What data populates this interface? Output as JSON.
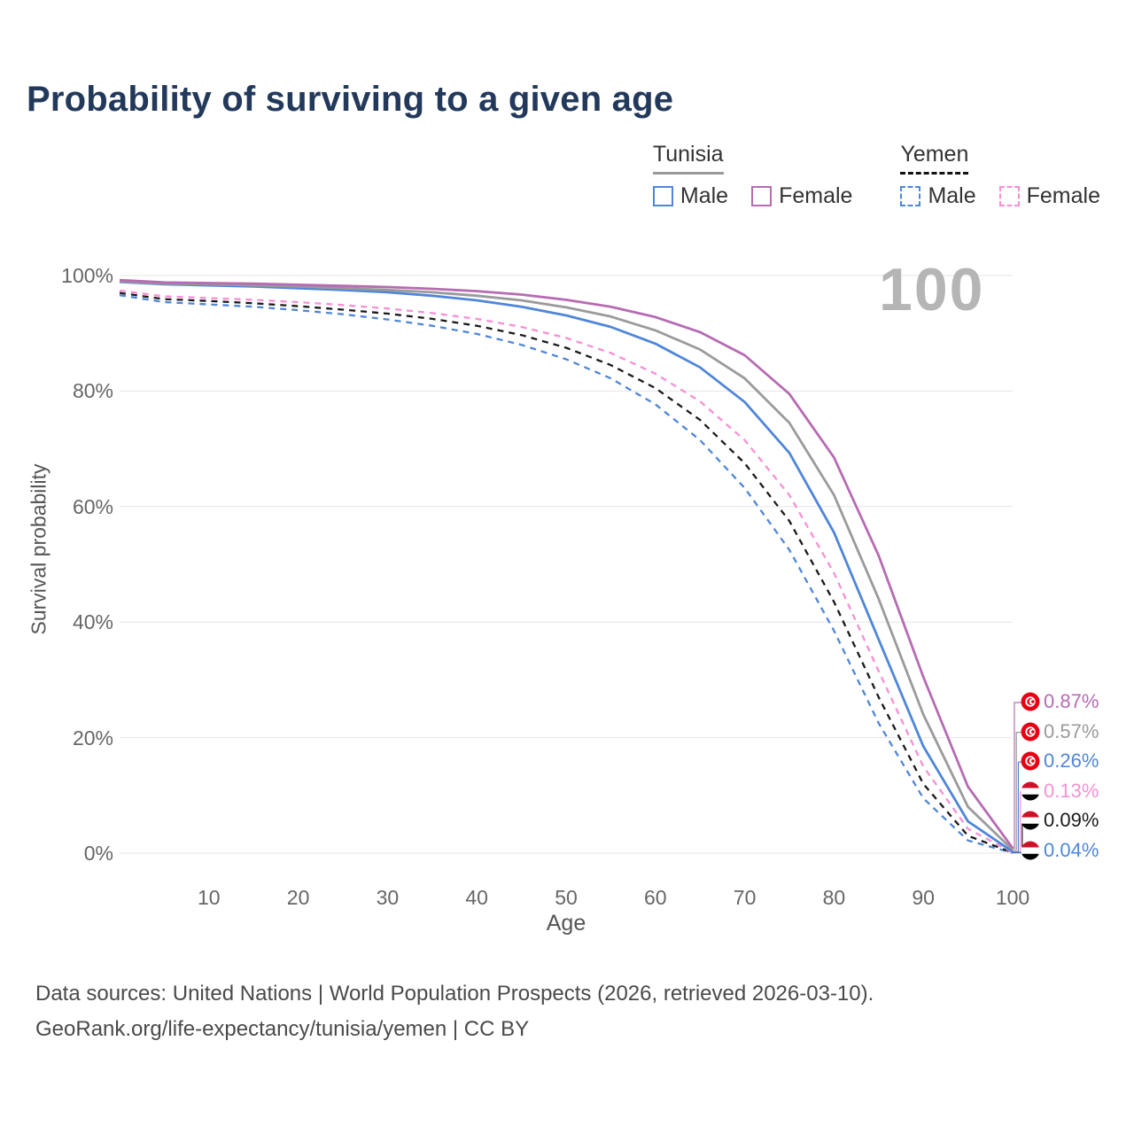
{
  "title": "Probability of surviving to a given age",
  "watermark": "100",
  "legend": {
    "groups": [
      {
        "id": "tunisia",
        "label": "Tunisia",
        "style": "solid",
        "items": [
          {
            "label": "Male",
            "color": "#4f86d8"
          },
          {
            "label": "Female",
            "color": "#b66bb2"
          }
        ]
      },
      {
        "id": "yemen",
        "label": "Yemen",
        "style": "dashed",
        "items": [
          {
            "label": "Male",
            "color": "#4f86d8"
          },
          {
            "label": "Female",
            "color": "#f78fd4"
          }
        ]
      }
    ]
  },
  "chart_data": {
    "type": "line",
    "title": "Probability of surviving to a given age",
    "xlabel": "Age",
    "ylabel": "Survival probability",
    "xlim": [
      0,
      100
    ],
    "ylim": [
      0,
      100
    ],
    "grid": "horizontal",
    "legend_position": "top-right",
    "x_ticks": [
      10,
      20,
      30,
      40,
      50,
      60,
      70,
      80,
      90,
      100
    ],
    "y_ticks": [
      {
        "value": 0,
        "label": "0%"
      },
      {
        "value": 20,
        "label": "20%"
      },
      {
        "value": 40,
        "label": "40%"
      },
      {
        "value": 60,
        "label": "60%"
      },
      {
        "value": 80,
        "label": "80%"
      },
      {
        "value": 100,
        "label": "100%"
      }
    ],
    "ages": [
      0,
      5,
      10,
      15,
      20,
      25,
      30,
      35,
      40,
      45,
      50,
      55,
      60,
      65,
      70,
      75,
      80,
      85,
      90,
      95,
      100
    ],
    "series": [
      {
        "name": "Tunisia Female",
        "country": "Tunisia",
        "sex": "Female",
        "color": "#b66bb2",
        "dash": false,
        "flag": "tunisia",
        "end_label": "0.87%",
        "values": [
          99.2,
          98.8,
          98.7,
          98.6,
          98.4,
          98.2,
          98.0,
          97.7,
          97.3,
          96.7,
          95.8,
          94.6,
          92.8,
          90.2,
          86.2,
          79.5,
          68.5,
          51.5,
          30.5,
          11.5,
          0.87
        ]
      },
      {
        "name": "Tunisia",
        "country": "Tunisia",
        "sex": "All",
        "color": "#9a9a9a",
        "dash": false,
        "flag": "tunisia",
        "end_label": "0.57%",
        "values": [
          99.0,
          98.6,
          98.5,
          98.3,
          98.1,
          97.8,
          97.5,
          97.1,
          96.5,
          95.7,
          94.5,
          92.9,
          90.5,
          87.2,
          82.2,
          74.5,
          62.0,
          44.0,
          24.0,
          8.0,
          0.57
        ]
      },
      {
        "name": "Tunisia Male",
        "country": "Tunisia",
        "sex": "Male",
        "color": "#4f86d8",
        "dash": false,
        "flag": "tunisia",
        "end_label": "0.26%",
        "values": [
          98.9,
          98.5,
          98.3,
          98.1,
          97.8,
          97.5,
          97.1,
          96.5,
          95.7,
          94.6,
          93.1,
          91.1,
          88.2,
          84.1,
          78.1,
          69.3,
          55.5,
          37.0,
          18.5,
          5.5,
          0.26
        ]
      },
      {
        "name": "Yemen Female",
        "country": "Yemen",
        "sex": "Female",
        "color": "#f78fd4",
        "dash": true,
        "flag": "yemen",
        "end_label": "0.13%",
        "values": [
          97.4,
          96.4,
          96.1,
          95.8,
          95.4,
          94.9,
          94.3,
          93.5,
          92.5,
          91.1,
          89.2,
          86.6,
          83.0,
          78.2,
          71.5,
          62.0,
          48.5,
          31.5,
          15.0,
          4.2,
          0.13
        ]
      },
      {
        "name": "Yemen",
        "country": "Yemen",
        "sex": "All",
        "color": "#1a1a1a",
        "dash": true,
        "flag": "yemen",
        "end_label": "0.09%",
        "values": [
          97.0,
          95.9,
          95.6,
          95.2,
          94.7,
          94.1,
          93.4,
          92.5,
          91.3,
          89.7,
          87.5,
          84.5,
          80.5,
          75.0,
          67.5,
          57.5,
          43.5,
          27.0,
          12.0,
          3.0,
          0.09
        ]
      },
      {
        "name": "Yemen Male",
        "country": "Yemen",
        "sex": "Male",
        "color": "#4f86d8",
        "dash": true,
        "flag": "yemen",
        "end_label": "0.04%",
        "values": [
          96.6,
          95.4,
          95.0,
          94.6,
          94.0,
          93.3,
          92.4,
          91.3,
          89.9,
          88.0,
          85.5,
          82.2,
          77.7,
          71.5,
          63.2,
          52.5,
          38.5,
          22.5,
          9.5,
          2.2,
          0.04
        ]
      }
    ]
  },
  "footer": {
    "line1": "Data sources: United Nations | World Population Prospects (2026, retrieved 2026-03-10).",
    "line2": "GeoRank.org/life-expectancy/tunisia/yemen | CC BY"
  }
}
